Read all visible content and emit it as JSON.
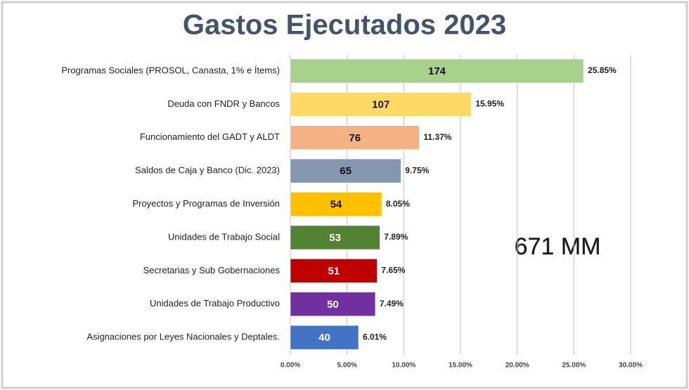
{
  "chart_data": {
    "type": "bar",
    "orientation": "horizontal",
    "title": "Gastos Ejecutados 2023",
    "annotation": "671 MM",
    "categories": [
      "Programas Sociales (PROSOL, Canasta, 1% e Ítems)",
      "Deuda con FNDR y Bancos",
      "Funcionamiento del GADT y ALDT",
      "Saldos de Caja y Banco (Dic. 2023)",
      "Proyectos y Programas de Inversión",
      "Unidades de Trabajo Social",
      "Secretarias y Sub Gobernaciones",
      "Unidades de Trabajo Productivo",
      "Asignaciones por Leyes Nacionales y Deptales."
    ],
    "values": [
      25.85,
      15.95,
      11.37,
      9.75,
      8.05,
      7.89,
      7.65,
      7.49,
      6.01
    ],
    "value_labels": [
      "25.85%",
      "15.95%",
      "11.37%",
      "9.75%",
      "8.05%",
      "7.89%",
      "7.65%",
      "7.49%",
      "6.01%"
    ],
    "amounts": [
      174,
      107,
      76,
      65,
      54,
      53,
      51,
      50,
      40
    ],
    "colors": [
      "#a9d18e",
      "#ffd966",
      "#f4b183",
      "#8497b0",
      "#ffc000",
      "#548235",
      "#c00000",
      "#7030a0",
      "#4472c4"
    ],
    "amount_colors": [
      "#111111",
      "#111111",
      "#111111",
      "#111111",
      "#111111",
      "#ffffff",
      "#ffffff",
      "#ffffff",
      "#ffffff"
    ],
    "xlim": [
      0,
      30
    ],
    "xticks": [
      {
        "value": 0,
        "label": "0.00%"
      },
      {
        "value": 5,
        "label": "5.00%"
      },
      {
        "value": 10,
        "label": "10.00%"
      },
      {
        "value": 15,
        "label": "15.00%"
      },
      {
        "value": 20,
        "label": "20.00%"
      },
      {
        "value": 25,
        "label": "25.00%"
      },
      {
        "value": 30,
        "label": "30.00%"
      }
    ],
    "grid": true
  }
}
